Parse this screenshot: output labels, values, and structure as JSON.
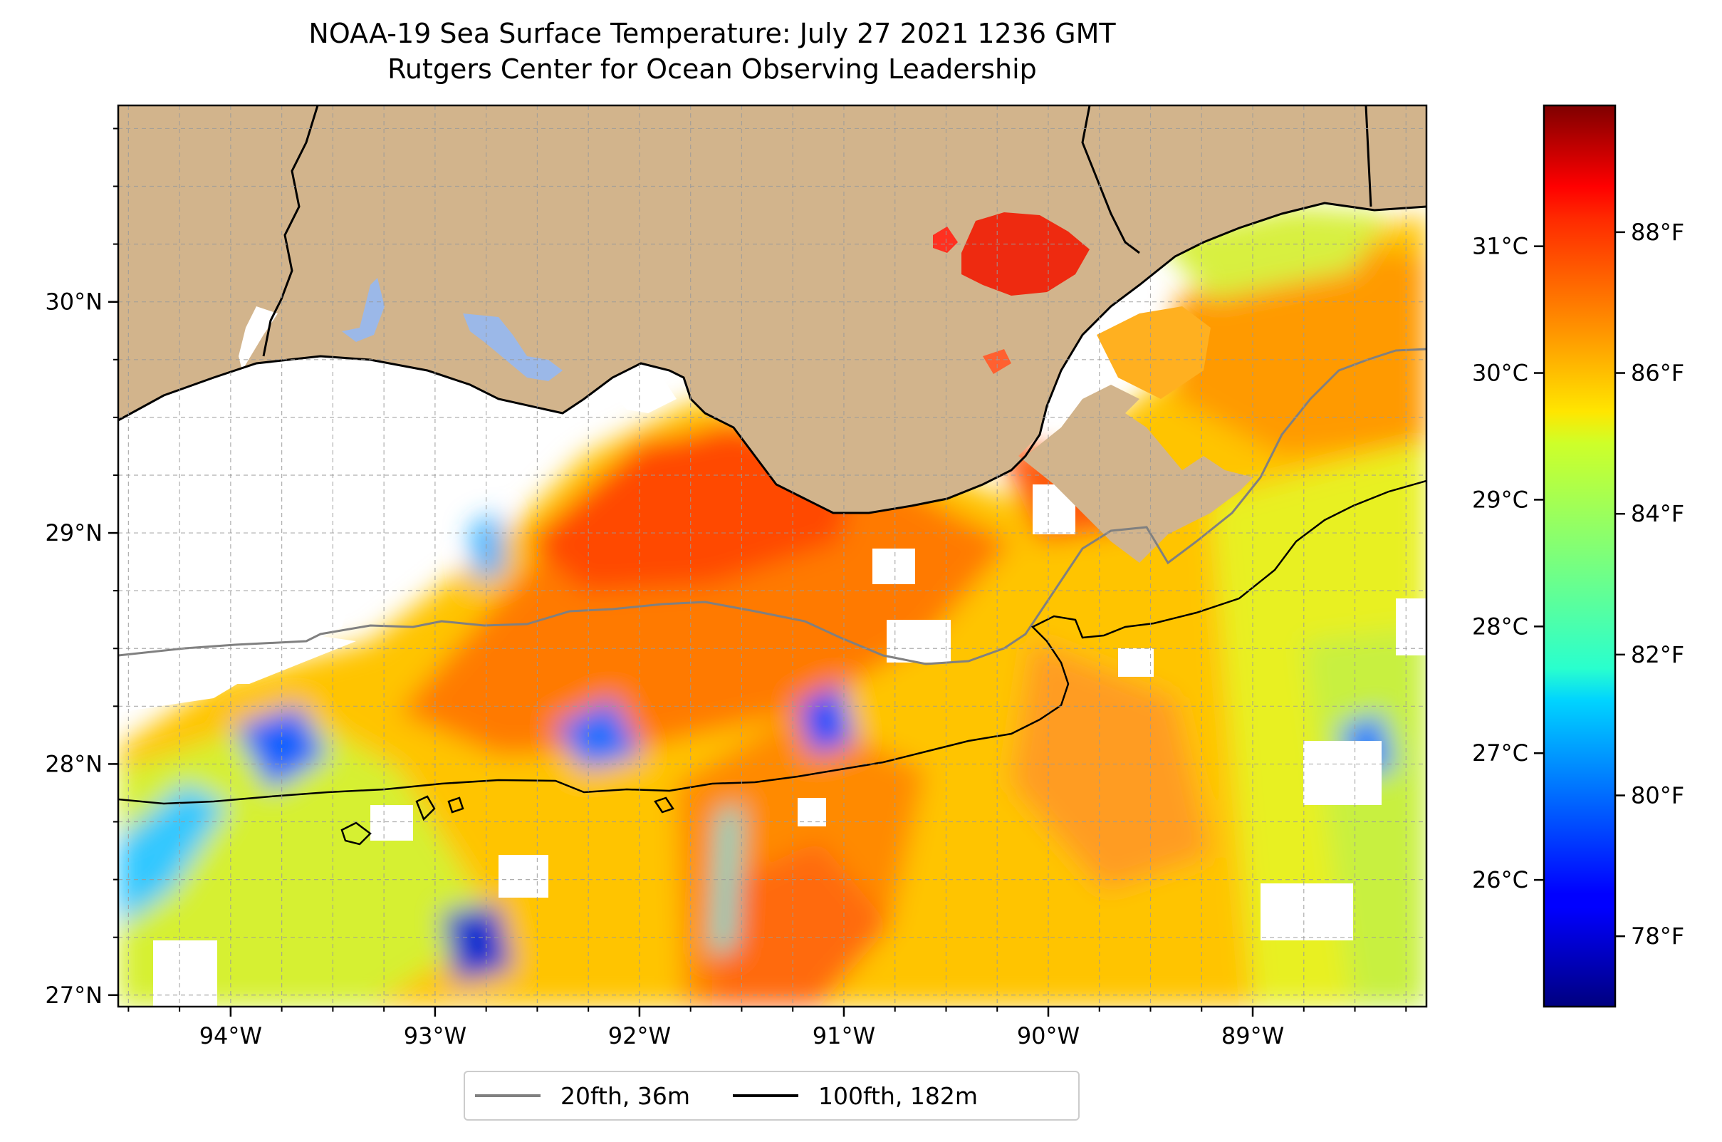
{
  "title": {
    "line1": "NOAA-19 Sea Surface Temperature: July 27 2021 1236 GMT",
    "line2": "Rutgers Center for Ocean Observing Leadership"
  },
  "map": {
    "lon_range": [
      -94.55,
      -88.15
    ],
    "lat_range": [
      26.95,
      30.85
    ],
    "lon_ticks": [
      {
        "value": -94,
        "label": "94°W"
      },
      {
        "value": -93,
        "label": "93°W"
      },
      {
        "value": -92,
        "label": "92°W"
      },
      {
        "value": -91,
        "label": "91°W"
      },
      {
        "value": -90,
        "label": "90°W"
      },
      {
        "value": -89,
        "label": "89°W"
      }
    ],
    "lat_ticks": [
      {
        "value": 27,
        "label": "27°N"
      },
      {
        "value": 28,
        "label": "28°N"
      },
      {
        "value": 29,
        "label": "29°N"
      },
      {
        "value": 30,
        "label": "30°N"
      }
    ],
    "grid": "dashed, 0.25° spacing",
    "colors": {
      "land": "#d2b48c",
      "lakes": "#9bb8e8",
      "no_data": "#ffffff"
    }
  },
  "colorbar": {
    "colormap": "jet",
    "range_F": [
      77.0,
      89.8
    ],
    "celsius_ticks": [
      {
        "value": 26,
        "label": "26°C"
      },
      {
        "value": 27,
        "label": "27°C"
      },
      {
        "value": 28,
        "label": "28°C"
      },
      {
        "value": 29,
        "label": "29°C"
      },
      {
        "value": 30,
        "label": "30°C"
      },
      {
        "value": 31,
        "label": "31°C"
      }
    ],
    "fahrenheit_ticks": [
      {
        "value": 78,
        "label": "78°F"
      },
      {
        "value": 80,
        "label": "80°F"
      },
      {
        "value": 82,
        "label": "82°F"
      },
      {
        "value": 84,
        "label": "84°F"
      },
      {
        "value": 86,
        "label": "86°F"
      },
      {
        "value": 88,
        "label": "88°F"
      }
    ]
  },
  "legend": {
    "placement": "bottom-center",
    "items": [
      {
        "label": "20fth, 36m",
        "color": "#808080"
      },
      {
        "label": "100fth, 182m",
        "color": "#000000"
      }
    ]
  }
}
